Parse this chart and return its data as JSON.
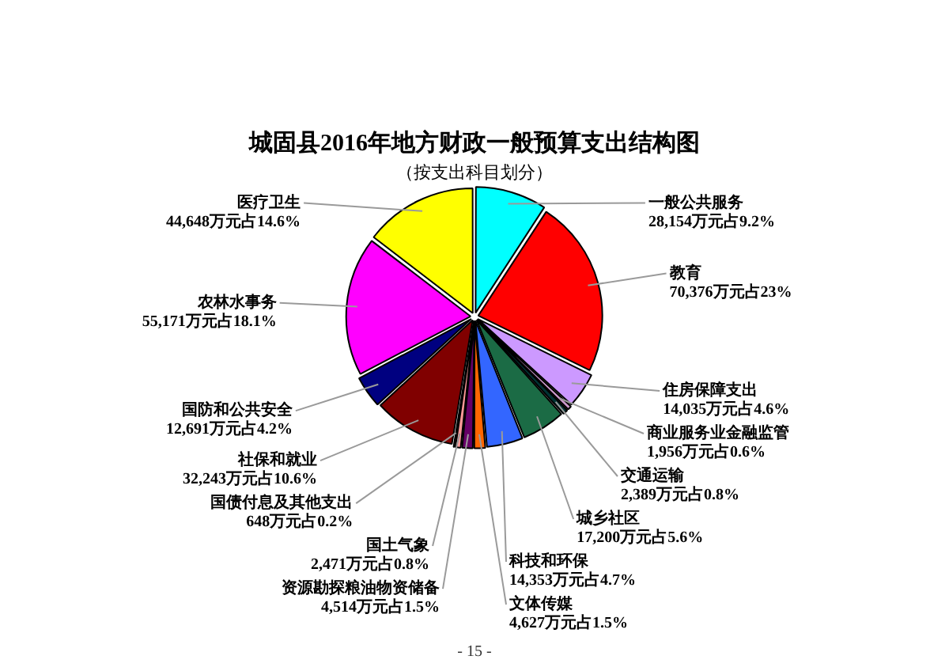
{
  "chart_data": {
    "type": "pie",
    "title": "城固县2016年地方财政一般预算支出结构图",
    "subtitle": "（按支出科目划分）",
    "categories": [
      "一般公共服务",
      "教育",
      "住房保障支出",
      "商业服务业金融监管",
      "交通运输",
      "城乡社区",
      "科技和环保",
      "文体传媒",
      "资源勘探粮油物资储备",
      "国土气象",
      "国债付息及其他支出",
      "社保和就业",
      "国防和公共安全",
      "农林水事务",
      "医疗卫生"
    ],
    "values": [
      28154,
      70376,
      14035,
      1956,
      2389,
      17200,
      14353,
      4627,
      4514,
      2471,
      648,
      32243,
      12691,
      55171,
      44648
    ],
    "colors": [
      "#00ffff",
      "#ff0000",
      "#cc99ff",
      "#cc99cc",
      "#003333",
      "#1b6b45",
      "#3366ff",
      "#ff6600",
      "#660066",
      "#ff9999",
      "#cc6666",
      "#800000",
      "#000080",
      "#ff00ff",
      "#ffff00"
    ],
    "value_labels": [
      "28,154万元占9.2%",
      "70,376万元占23%",
      "14,035万元占4.6%",
      "1,956万元占0.6%",
      "2,389万元占0.8%",
      "17,200万元占5.6%",
      "14,353万元占4.7%",
      "4,627万元占1.5%",
      "4,514万元占1.5%",
      "2,471万元占0.8%",
      "648万元占0.2%",
      "32,243万元占10.6%",
      "12,691万元占4.2%",
      "55,171万元占18.1%",
      "44,648万元占14.6%"
    ],
    "annotations": [
      "- 15 -"
    ]
  }
}
